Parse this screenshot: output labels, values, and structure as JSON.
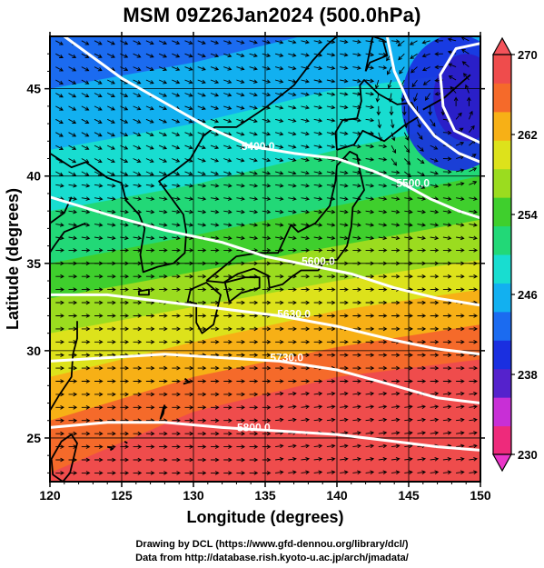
{
  "title": "MSM 09Z26Jan2024 (500.0hPa)",
  "map": {
    "xlabel": "Longitude (degrees)",
    "ylabel": "Latitude  (degrees)",
    "lon_range": [
      120,
      150
    ],
    "lat_range": [
      22.5,
      48
    ],
    "lon_ticks": [
      120,
      125,
      130,
      135,
      140,
      145,
      150
    ],
    "lat_ticks": [
      25,
      30,
      35,
      40,
      45
    ],
    "grid": true,
    "field": "500hPa temperature (K) shaded, geopotential height contours (m), wind streamlines",
    "contours": [
      {
        "label": "5400.0",
        "label_lon": 134.5,
        "label_lat": 41.5
      },
      {
        "label": "5500.0",
        "label_lon": 145.3,
        "label_lat": 39.4
      },
      {
        "label": "5600.0",
        "label_lon": 138.7,
        "label_lat": 34.9
      },
      {
        "label": "5630.0",
        "label_lon": 137.0,
        "label_lat": 31.9
      },
      {
        "label": "5730.0",
        "label_lon": 136.5,
        "label_lat": 29.4
      },
      {
        "label": "5800.0",
        "label_lon": 134.2,
        "label_lat": 25.4
      }
    ]
  },
  "colorbar": {
    "min": 230,
    "max": 270,
    "tick_labels": [
      "270",
      "262",
      "254",
      "246",
      "238",
      "230"
    ],
    "colors": [
      "#ee2a7b",
      "#c82fd6",
      "#5522cc",
      "#1a2fe0",
      "#1b6bf0",
      "#12b0f0",
      "#18ddd0",
      "#22d877",
      "#3fcf2d",
      "#9bdc1f",
      "#dde21b",
      "#f7b016",
      "#f56a2a",
      "#ef4c4c"
    ]
  },
  "credits": {
    "line1": "Drawing by DCL (https://www.gfd-dennou.org/library/dcl/)",
    "line2": "Data from http://database.rish.kyoto-u.ac.jp/arch/jmadata/"
  }
}
